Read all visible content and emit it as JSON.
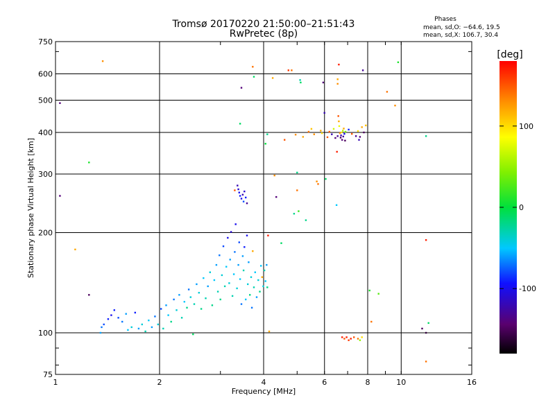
{
  "chart_data": {
    "type": "scatter",
    "title": "Tromsø 20170220 21:50:00–21:51:43",
    "subtitle": "RwPretec (8p)",
    "xlabel": "Frequency [MHz]",
    "ylabel": "Stationary phase Virtual Height [km]",
    "xscale": "log",
    "yscale": "log",
    "xlim": [
      1,
      16
    ],
    "ylim": [
      75,
      750
    ],
    "xticks": [
      1,
      2,
      4,
      6,
      8,
      10,
      16
    ],
    "yticks": [
      75,
      100,
      200,
      300,
      400,
      500,
      600,
      750
    ],
    "grid": true,
    "phase_stats": {
      "heading": "Phases",
      "line_o": "mean, sd,O: −64.6, 19.5",
      "line_x": "mean, sd,X: 106.7, 30.4"
    },
    "colorbar": {
      "label": "[deg]",
      "ticks": [
        100,
        0,
        -100
      ],
      "range": [
        -180,
        180
      ],
      "colormap": "rainbow"
    },
    "points": [
      [
        1.03,
        490,
        -140
      ],
      [
        1.03,
        258,
        -140
      ],
      [
        1.14,
        178,
        120
      ],
      [
        1.25,
        130,
        -150
      ],
      [
        1.25,
        325,
        10
      ],
      [
        1.37,
        655,
        130
      ],
      [
        1.35,
        100,
        -60
      ],
      [
        1.36,
        104,
        -70
      ],
      [
        1.38,
        106,
        -80
      ],
      [
        1.42,
        110,
        -90
      ],
      [
        1.45,
        113,
        -100
      ],
      [
        1.48,
        117,
        -90
      ],
      [
        1.52,
        111,
        -80
      ],
      [
        1.56,
        108,
        -70
      ],
      [
        1.6,
        114,
        -60
      ],
      [
        1.62,
        102,
        -50
      ],
      [
        1.66,
        104,
        -40
      ],
      [
        1.7,
        115,
        -90
      ],
      [
        1.74,
        103,
        -60
      ],
      [
        1.78,
        106,
        -40
      ],
      [
        1.82,
        101,
        -30
      ],
      [
        1.86,
        109,
        -50
      ],
      [
        1.9,
        104,
        -60
      ],
      [
        1.94,
        112,
        -70
      ],
      [
        1.98,
        106,
        -40
      ],
      [
        2.02,
        118,
        -80
      ],
      [
        2.05,
        103,
        -30
      ],
      [
        2.09,
        121,
        -60
      ],
      [
        2.12,
        113,
        -50
      ],
      [
        2.16,
        108,
        -20
      ],
      [
        2.2,
        126,
        -70
      ],
      [
        2.24,
        117,
        -40
      ],
      [
        2.28,
        130,
        -60
      ],
      [
        2.32,
        111,
        -30
      ],
      [
        2.36,
        124,
        -50
      ],
      [
        2.4,
        119,
        -20
      ],
      [
        2.43,
        135,
        -70
      ],
      [
        2.46,
        128,
        -40
      ],
      [
        2.5,
        99,
        -10
      ],
      [
        2.52,
        122,
        -30
      ],
      [
        2.56,
        140,
        -60
      ],
      [
        2.6,
        132,
        -40
      ],
      [
        2.64,
        118,
        -20
      ],
      [
        2.68,
        146,
        -50
      ],
      [
        2.72,
        127,
        -30
      ],
      [
        2.76,
        138,
        -60
      ],
      [
        2.8,
        152,
        -40
      ],
      [
        2.84,
        121,
        -20
      ],
      [
        2.88,
        144,
        -50
      ],
      [
        2.92,
        160,
        -60
      ],
      [
        2.95,
        133,
        -30
      ],
      [
        2.98,
        171,
        -70
      ],
      [
        3.0,
        126,
        -20
      ],
      [
        3.03,
        149,
        -40
      ],
      [
        3.06,
        182,
        -80
      ],
      [
        3.09,
        138,
        -30
      ],
      [
        3.12,
        158,
        -50
      ],
      [
        3.15,
        193,
        -100
      ],
      [
        3.18,
        141,
        -40
      ],
      [
        3.2,
        166,
        -60
      ],
      [
        3.22,
        201,
        -110
      ],
      [
        3.25,
        129,
        -30
      ],
      [
        3.28,
        150,
        -50
      ],
      [
        3.3,
        175,
        -70
      ],
      [
        3.32,
        212,
        -100
      ],
      [
        3.35,
        136,
        -40
      ],
      [
        3.38,
        160,
        -60
      ],
      [
        3.4,
        187,
        -80
      ],
      [
        3.42,
        145,
        -50
      ],
      [
        3.45,
        122,
        -70
      ],
      [
        3.48,
        170,
        -60
      ],
      [
        3.5,
        154,
        -30
      ],
      [
        3.52,
        181,
        -90
      ],
      [
        3.55,
        126,
        -50
      ],
      [
        3.58,
        196,
        -100
      ],
      [
        3.6,
        140,
        -40
      ],
      [
        3.62,
        163,
        -60
      ],
      [
        3.65,
        130,
        -20
      ],
      [
        3.68,
        147,
        -40
      ],
      [
        3.7,
        119,
        -70
      ],
      [
        3.72,
        176,
        120
      ],
      [
        3.75,
        137,
        -30
      ],
      [
        3.78,
        152,
        -50
      ],
      [
        3.82,
        128,
        -60
      ],
      [
        3.86,
        144,
        -40
      ],
      [
        3.9,
        133,
        -20
      ],
      [
        3.93,
        159,
        -50
      ],
      [
        3.96,
        147,
        120
      ],
      [
        3.99,
        138,
        -40
      ],
      [
        4.02,
        154,
        -30
      ],
      [
        4.05,
        143,
        -50
      ],
      [
        4.08,
        160,
        -60
      ],
      [
        4.1,
        137,
        -20
      ],
      [
        4.12,
        196,
        170
      ],
      [
        4.15,
        101,
        120
      ],
      [
        3.36,
        277,
        -120
      ],
      [
        3.38,
        270,
        -110
      ],
      [
        3.4,
        264,
        -100
      ],
      [
        3.42,
        258,
        -90
      ],
      [
        3.45,
        253,
        -100
      ],
      [
        3.48,
        260,
        -120
      ],
      [
        3.5,
        248,
        -80
      ],
      [
        3.52,
        266,
        -110
      ],
      [
        3.55,
        255,
        -90
      ],
      [
        3.58,
        245,
        -130
      ],
      [
        3.3,
        268,
        150
      ],
      [
        3.42,
        425,
        -10
      ],
      [
        3.45,
        545,
        -140
      ],
      [
        3.75,
        588,
        -10
      ],
      [
        3.72,
        630,
        140
      ],
      [
        4.05,
        370,
        0
      ],
      [
        4.1,
        395,
        -20
      ],
      [
        4.25,
        583,
        120
      ],
      [
        4.3,
        297,
        130
      ],
      [
        4.35,
        256,
        -140
      ],
      [
        4.5,
        186,
        -10
      ],
      [
        4.6,
        380,
        150
      ],
      [
        4.72,
        615,
        160
      ],
      [
        4.82,
        615,
        140
      ],
      [
        4.9,
        228,
        -20
      ],
      [
        4.95,
        394,
        130
      ],
      [
        5.0,
        303,
        -20
      ],
      [
        5.0,
        268,
        140
      ],
      [
        5.05,
        232,
        20
      ],
      [
        5.1,
        575,
        -30
      ],
      [
        5.12,
        565,
        -10
      ],
      [
        5.2,
        388,
        120
      ],
      [
        5.3,
        218,
        -20
      ],
      [
        5.4,
        402,
        140
      ],
      [
        5.5,
        410,
        110
      ],
      [
        5.6,
        395,
        130
      ],
      [
        5.7,
        285,
        130
      ],
      [
        5.75,
        280,
        140
      ],
      [
        5.85,
        405,
        120
      ],
      [
        5.9,
        398,
        100
      ],
      [
        5.95,
        565,
        -140
      ],
      [
        6.0,
        458,
        -120
      ],
      [
        6.05,
        290,
        -10
      ],
      [
        6.12,
        387,
        150
      ],
      [
        6.2,
        402,
        150
      ],
      [
        6.3,
        395,
        -120
      ],
      [
        6.38,
        410,
        70
      ],
      [
        6.45,
        385,
        -140
      ],
      [
        6.5,
        242,
        -50
      ],
      [
        6.52,
        350,
        170
      ],
      [
        6.55,
        390,
        -130
      ],
      [
        6.58,
        448,
        150
      ],
      [
        6.6,
        432,
        120
      ],
      [
        6.62,
        418,
        80
      ],
      [
        6.65,
        398,
        130
      ],
      [
        6.68,
        386,
        -150
      ],
      [
        6.7,
        392,
        -120
      ],
      [
        6.72,
        400,
        100
      ],
      [
        6.75,
        380,
        -140
      ],
      [
        6.78,
        405,
        60
      ],
      [
        6.8,
        389,
        -130
      ],
      [
        6.82,
        411,
        120
      ],
      [
        6.85,
        396,
        -100
      ],
      [
        6.88,
        378,
        -150
      ],
      [
        6.9,
        402,
        40
      ],
      [
        6.55,
        578,
        120
      ],
      [
        6.55,
        560,
        130
      ],
      [
        6.6,
        640,
        170
      ],
      [
        7.05,
        408,
        -90
      ],
      [
        7.2,
        396,
        150
      ],
      [
        7.4,
        390,
        -130
      ],
      [
        7.5,
        404,
        100
      ],
      [
        7.6,
        388,
        -140
      ],
      [
        7.7,
        415,
        120
      ],
      [
        7.8,
        400,
        -150
      ],
      [
        7.55,
        380,
        -120
      ],
      [
        7.9,
        420,
        110
      ],
      [
        7.75,
        615,
        -130
      ],
      [
        6.75,
        97,
        170
      ],
      [
        6.85,
        96,
        150
      ],
      [
        6.95,
        97,
        170
      ],
      [
        7.05,
        95,
        160
      ],
      [
        7.15,
        96,
        170
      ],
      [
        7.3,
        97,
        150
      ],
      [
        7.5,
        96,
        140
      ],
      [
        7.6,
        95,
        50
      ],
      [
        7.7,
        97,
        100
      ],
      [
        8.1,
        134,
        10
      ],
      [
        8.2,
        108,
        140
      ],
      [
        8.6,
        131,
        30
      ],
      [
        9.1,
        530,
        140
      ],
      [
        9.6,
        482,
        130
      ],
      [
        9.8,
        650,
        10
      ],
      [
        11.5,
        103,
        -150
      ],
      [
        11.8,
        100,
        -160
      ],
      [
        12.0,
        107,
        -10
      ],
      [
        11.8,
        390,
        -20
      ],
      [
        11.8,
        190,
        170
      ],
      [
        11.8,
        82,
        140
      ]
    ]
  }
}
